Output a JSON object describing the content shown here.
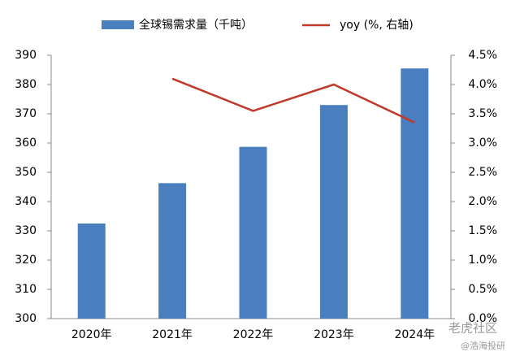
{
  "chart_data": {
    "type": "bar",
    "categories": [
      "2020年",
      "2021年",
      "2022年",
      "2023年",
      "2024年"
    ],
    "series": [
      {
        "name": "全球锡需求量（千吨）",
        "color": "#4a7ebf",
        "type": "bar",
        "values": [
          332.5,
          346.3,
          358.7,
          373.0,
          385.5
        ]
      },
      {
        "name": "yoy (%, 右轴)",
        "color": "#c0392b",
        "type": "line",
        "axis": "y2",
        "values": [
          null,
          4.1,
          3.55,
          4.0,
          3.35
        ]
      }
    ],
    "ylim": [
      300,
      390
    ],
    "yticks": [
      300,
      310,
      320,
      330,
      340,
      350,
      360,
      370,
      380,
      390
    ],
    "y2lim": [
      0,
      4.5
    ],
    "y2ticks": [
      {
        "value": 0,
        "label": "0.0%"
      },
      {
        "value": 0.5,
        "label": "0.5%"
      },
      {
        "value": 1,
        "label": "1.0%"
      },
      {
        "value": 1.5,
        "label": "1.5%"
      },
      {
        "value": 2,
        "label": "2.0%"
      },
      {
        "value": 2.5,
        "label": "2.5%"
      },
      {
        "value": 3,
        "label": "3.0%"
      },
      {
        "value": 3.5,
        "label": "3.5%"
      },
      {
        "value": 4,
        "label": "4.0%"
      },
      {
        "value": 4.5,
        "label": "4.5%"
      }
    ],
    "grid": false,
    "legend": "top"
  },
  "watermark": {
    "site": "老虎社区",
    "author": "@浩海投研"
  }
}
